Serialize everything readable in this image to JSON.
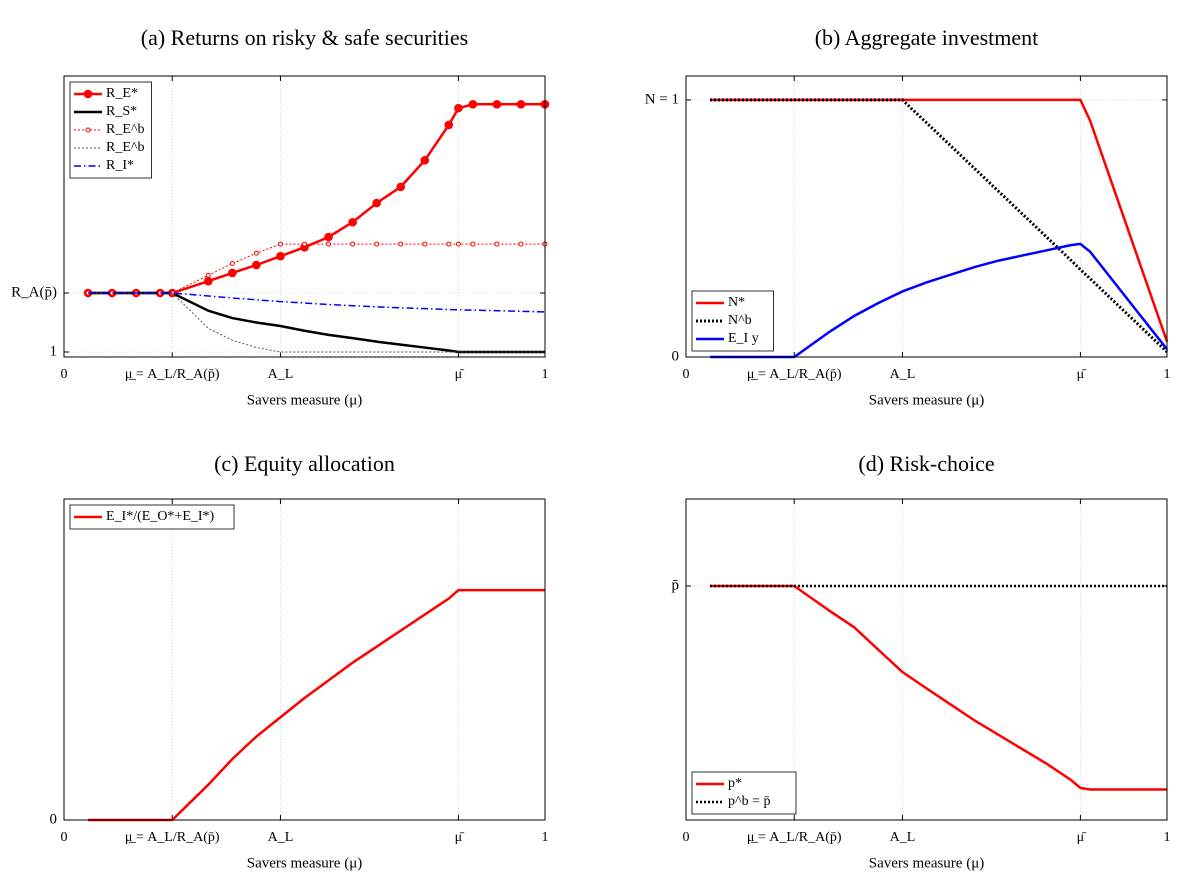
{
  "chart_data": [
    {
      "type": "line",
      "title": "(a) Returns on risky & safe securities",
      "xlabel": "Savers measure (μ)",
      "x": [
        0.05,
        0.1,
        0.15,
        0.2,
        0.225,
        0.3,
        0.35,
        0.4,
        0.45,
        0.5,
        0.55,
        0.6,
        0.65,
        0.7,
        0.75,
        0.8,
        0.82,
        0.85,
        0.9,
        0.95,
        1.0
      ],
      "xlim": [
        0,
        1
      ],
      "xticks": [
        0,
        {
          "value": 0.225,
          "label": "μ̲ = A_L/R_A(p̄)"
        },
        {
          "value": 0.45,
          "label": "A_L"
        },
        {
          "value": 0.82,
          "label": "μ̄"
        },
        1
      ],
      "ylim": [
        0.983,
        1.936
      ],
      "yticks": [
        1,
        {
          "value": 1.2,
          "label": "R_A(p̄)"
        }
      ],
      "grid": true,
      "legend": "upper left",
      "series": [
        {
          "name": "R_E*",
          "color": "#ff0000",
          "dash": "solid",
          "marker": "filled-circle",
          "values": [
            1.2,
            1.2,
            1.2,
            1.2,
            1.2,
            1.24,
            1.268,
            1.295,
            1.325,
            1.355,
            1.39,
            1.44,
            1.505,
            1.56,
            1.65,
            1.77,
            1.827,
            1.84,
            1.84,
            1.84,
            1.84
          ]
        },
        {
          "name": "R_S*",
          "color": "#000000",
          "dash": "solid",
          "values": [
            1.2,
            1.2,
            1.2,
            1.2,
            1.2,
            1.14,
            1.115,
            1.1,
            1.088,
            1.072,
            1.058,
            1.047,
            1.035,
            1.025,
            1.015,
            1.005,
            1.0,
            1.0,
            1.0,
            1.0,
            1.0
          ]
        },
        {
          "name": "R_E^b",
          "color": "#ff0000",
          "dash": "dotted",
          "marker": "open-circle",
          "values": [
            1.2,
            1.2,
            1.2,
            1.2,
            1.2,
            1.26,
            1.3,
            1.335,
            1.366,
            1.366,
            1.366,
            1.366,
            1.366,
            1.366,
            1.366,
            1.366,
            1.366,
            1.366,
            1.366,
            1.366,
            1.366
          ]
        },
        {
          "name": "R_E^b",
          "color": "#555555",
          "dash": "dotted",
          "values": [
            1.2,
            1.2,
            1.2,
            1.2,
            1.2,
            1.08,
            1.04,
            1.015,
            1.0,
            1.0,
            1.0,
            1.0,
            1.0,
            1.0,
            1.0,
            1.0,
            1.0,
            1.0,
            1.0,
            1.0,
            1.0
          ]
        },
        {
          "name": "R_I*",
          "color": "#0000ff",
          "dash": "dashdot",
          "values": [
            1.2,
            1.2,
            1.2,
            1.2,
            1.2,
            1.19,
            1.183,
            1.177,
            1.171,
            1.166,
            1.161,
            1.157,
            1.153,
            1.15,
            1.147,
            1.144,
            1.143,
            1.142,
            1.14,
            1.138,
            1.136
          ]
        }
      ]
    },
    {
      "type": "line",
      "title": "(b) Aggregate investment",
      "xlabel": "Savers measure (μ)",
      "x": [
        0.05,
        0.225,
        0.3,
        0.35,
        0.4,
        0.45,
        0.5,
        0.55,
        0.6,
        0.65,
        0.7,
        0.75,
        0.8,
        0.82,
        0.84,
        1.0
      ],
      "xlim": [
        0,
        1
      ],
      "xticks": [
        0,
        {
          "value": 0.225,
          "label": "μ̲ = A_L/R_A(p̄)"
        },
        {
          "value": 0.45,
          "label": "A_L"
        },
        {
          "value": 0.82,
          "label": "μ̄"
        },
        1
      ],
      "ylim": [
        0,
        1.093
      ],
      "yticks": [
        0,
        {
          "value": 1,
          "label": "N = 1"
        }
      ],
      "grid": true,
      "legend": "lower left",
      "series": [
        {
          "name": "N*",
          "color": "#ff0000",
          "dash": "solid",
          "values": [
            1,
            1,
            1,
            1,
            1,
            1,
            1,
            1,
            1,
            1,
            1,
            1,
            1,
            1,
            0.92,
            0.06
          ]
        },
        {
          "name": "N^b",
          "color": "#000000",
          "dash": "dotted",
          "values": [
            1,
            1,
            1,
            1,
            1,
            1,
            0.911,
            0.822,
            0.733,
            0.644,
            0.555,
            0.466,
            0.377,
            0.34,
            0.305,
            0.02
          ]
        },
        {
          "name": "E_I y",
          "color": "#0000ff",
          "dash": "solid",
          "values": [
            0,
            0,
            0.1,
            0.16,
            0.21,
            0.255,
            0.29,
            0.32,
            0.35,
            0.375,
            0.395,
            0.415,
            0.435,
            0.44,
            0.41,
            0.03
          ]
        }
      ]
    },
    {
      "type": "line",
      "title": "(c) Equity allocation",
      "xlabel": "Savers measure (μ)",
      "x": [
        0.05,
        0.225,
        0.3,
        0.35,
        0.4,
        0.45,
        0.5,
        0.55,
        0.6,
        0.65,
        0.7,
        0.75,
        0.8,
        0.82,
        1.0
      ],
      "xlim": [
        0,
        1
      ],
      "xticks": [
        0,
        {
          "value": 0.225,
          "label": "μ̲ = A_L/R_A(p̄)"
        },
        {
          "value": 0.45,
          "label": "A_L"
        },
        {
          "value": 0.82,
          "label": "μ̄"
        },
        1
      ],
      "ylim": [
        0,
        1
      ],
      "yticks": [
        0
      ],
      "grid": true,
      "legend": "upper left",
      "series": [
        {
          "name": "E_I*/(E_O*+E_I*)",
          "color": "#ff0000",
          "dash": "solid",
          "values": [
            0,
            0,
            0.11,
            0.19,
            0.26,
            0.32,
            0.38,
            0.435,
            0.49,
            0.54,
            0.59,
            0.64,
            0.69,
            0.716,
            0.716
          ]
        }
      ]
    },
    {
      "type": "line",
      "title": "(d) Risk-choice",
      "xlabel": "Savers measure (μ)",
      "x": [
        0.05,
        0.225,
        0.3,
        0.35,
        0.4,
        0.45,
        0.5,
        0.55,
        0.6,
        0.65,
        0.7,
        0.75,
        0.8,
        0.82,
        0.84,
        1.0
      ],
      "xlim": [
        0,
        1
      ],
      "xticks": [
        0,
        {
          "value": 0.225,
          "label": "μ̲ = A_L/R_A(p̄)"
        },
        {
          "value": 0.45,
          "label": "A_L"
        },
        {
          "value": 0.82,
          "label": "μ̄"
        },
        1
      ],
      "ylim": [
        0,
        1
      ],
      "yticks": [
        {
          "value": 0.729,
          "label": "p̄"
        }
      ],
      "grid": true,
      "legend": "lower left",
      "series": [
        {
          "name": "p*",
          "color": "#ff0000",
          "dash": "solid",
          "values": [
            0.729,
            0.729,
            0.65,
            0.6,
            0.53,
            0.461,
            0.41,
            0.36,
            0.31,
            0.265,
            0.22,
            0.175,
            0.125,
            0.1,
            0.095,
            0.095
          ]
        },
        {
          "name": "p^b = p̄",
          "color": "#000000",
          "dash": "dotted",
          "values": [
            0.729,
            0.729,
            0.729,
            0.729,
            0.729,
            0.729,
            0.729,
            0.729,
            0.729,
            0.729,
            0.729,
            0.729,
            0.729,
            0.729,
            0.729,
            0.729
          ]
        }
      ]
    }
  ]
}
